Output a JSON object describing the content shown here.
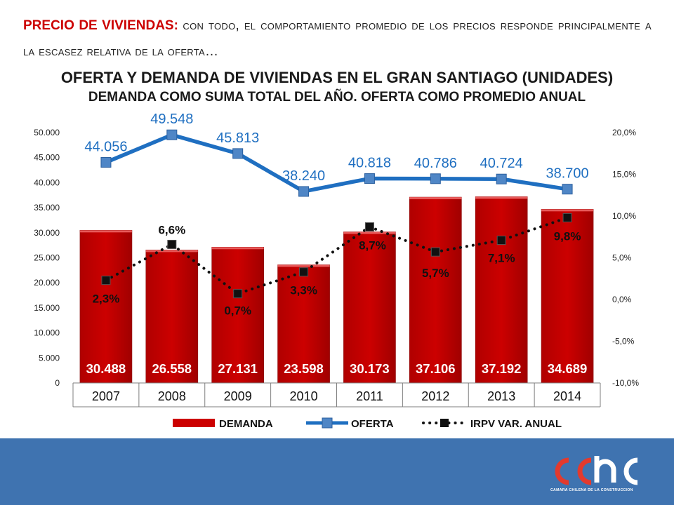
{
  "heading": {
    "lead": "PRECIO DE VIVIENDAS:",
    "rest": "CON TODO, EL COMPORTAMIENTO PROMEDIO DE LOS PRECIOS RESPONDE PRINCIPALMENTE A LA ESCASEZ RELATIVA DE LA OFERTA…"
  },
  "colors": {
    "demanda": "#cc0000",
    "oferta": "#1f6fc1",
    "irpv": "#111111",
    "footer": "#3f73b0",
    "lead": "#cc0000"
  },
  "logo": {
    "text": "cchc",
    "caption": "CAMARA CHILENA DE LA CONSTRUCCION"
  },
  "chart_data": {
    "type": "bar",
    "title": "OFERTA Y DEMANDA DE VIVIENDAS EN EL GRAN SANTIAGO (UNIDADES)",
    "subtitle": "DEMANDA COMO SUMA TOTAL DEL AÑO. OFERTA COMO PROMEDIO ANUAL",
    "categories": [
      "2007",
      "2008",
      "2009",
      "2010",
      "2011",
      "2012",
      "2013",
      "2014"
    ],
    "y_left": {
      "range": [
        0,
        50000
      ],
      "ticks": [
        "0",
        "5.000",
        "10.000",
        "15.000",
        "20.000",
        "25.000",
        "30.000",
        "35.000",
        "40.000",
        "45.000",
        "50.000"
      ]
    },
    "y_right": {
      "range": [
        -10,
        20
      ],
      "ticks": [
        "-10,0%",
        "-5,0%",
        "0,0%",
        "5,0%",
        "10,0%",
        "15,0%",
        "20,0%"
      ]
    },
    "series": [
      {
        "name": "DEMANDA",
        "type": "bar",
        "axis": "left",
        "values": [
          30488,
          26558,
          27131,
          23598,
          30173,
          37106,
          37192,
          34689
        ],
        "labels": [
          "30.488",
          "26.558",
          "27.131",
          "23.598",
          "30.173",
          "37.106",
          "37.192",
          "34.689"
        ]
      },
      {
        "name": "OFERTA",
        "type": "line",
        "axis": "left",
        "values": [
          44056,
          49548,
          45813,
          38240,
          40818,
          40786,
          40724,
          38700
        ],
        "labels": [
          "44.056",
          "49.548",
          "45.813",
          "38.240",
          "40.818",
          "40.786",
          "40.724",
          "38.700"
        ]
      },
      {
        "name": "IRPV VAR. ANUAL",
        "type": "line-dotted",
        "axis": "right",
        "values": [
          2.3,
          6.6,
          0.7,
          3.3,
          8.7,
          5.7,
          7.1,
          9.8
        ],
        "labels": [
          "2,3%",
          "6,6%",
          "0,7%",
          "3,3%",
          "8,7%",
          "5,7%",
          "7,1%",
          "9,8%"
        ]
      }
    ],
    "legend": [
      "DEMANDA",
      "OFERTA",
      "IRPV VAR. ANUAL"
    ],
    "legend_position": "bottom",
    "grid": false
  }
}
